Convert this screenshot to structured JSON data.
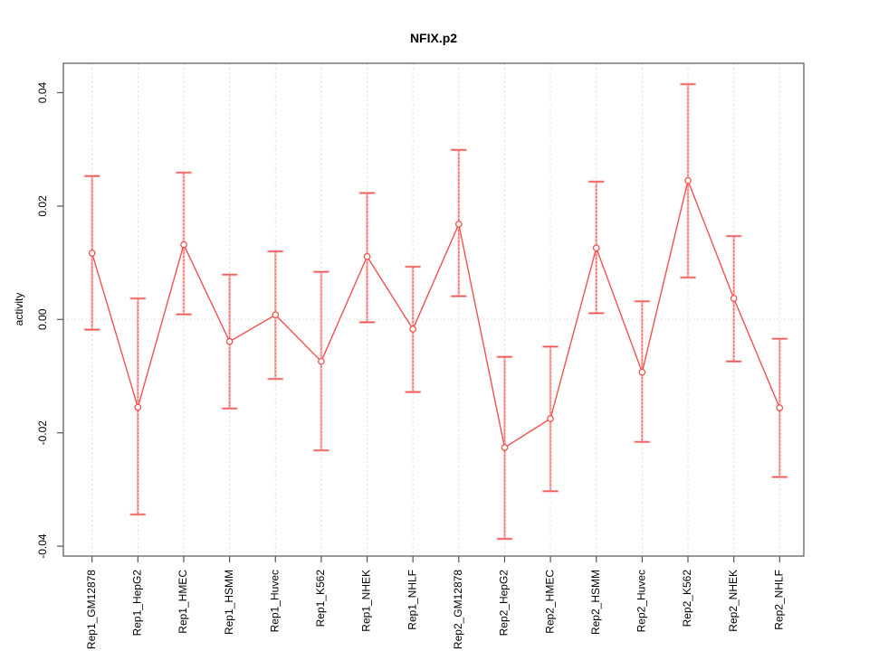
{
  "figure": {
    "title": "NFIX.p2",
    "y_axis_label": "activity"
  },
  "chart_data": {
    "type": "line",
    "title": "NFIX.p2",
    "xlabel": "",
    "ylabel": "activity",
    "ylim": [
      -0.042,
      0.0447
    ],
    "yticks": [
      -0.04,
      -0.02,
      0,
      0.02,
      0.04
    ],
    "ytick_labels": [
      "-0.04",
      "-0.02",
      "0.00",
      "0.02",
      "0.04"
    ],
    "grid": "vertical dashed gridline at every category; dotted horizontal reference line at y=0; no legend",
    "legend": "none",
    "point_style": "open circle with vertical error bar (caps at ends), points connected by straight line segments",
    "categories": [
      "Rep1_GM12878",
      "Rep1_HepG2",
      "Rep1_HMEC",
      "Rep1_HSMM",
      "Rep1_Huvec",
      "Rep1_K562",
      "Rep1_NHEK",
      "Rep1_NHLF",
      "Rep2_GM12878",
      "Rep2_HepG2",
      "Rep2_HMEC",
      "Rep2_HSMM",
      "Rep2_Huvec",
      "Rep2_K562",
      "Rep2_NHEK",
      "Rep2_NHLF"
    ],
    "series": [
      {
        "name": "activity",
        "values": [
          0.0117,
          -0.0155,
          0.0132,
          -0.0039,
          0.0008,
          -0.0074,
          0.0111,
          -0.0017,
          0.0168,
          -0.0226,
          -0.0175,
          0.0126,
          -0.0093,
          0.0245,
          0.0037,
          -0.0156
        ]
      },
      {
        "name": "ci_upper",
        "values": [
          0.0253,
          0.0037,
          0.0259,
          0.0079,
          0.012,
          0.0084,
          0.0223,
          0.0093,
          0.0299,
          -0.0066,
          -0.0048,
          0.0243,
          0.0032,
          0.0415,
          0.0147,
          -0.0034
        ]
      },
      {
        "name": "ci_lower",
        "values": [
          -0.0018,
          -0.0344,
          0.0009,
          -0.0157,
          -0.0105,
          -0.0231,
          -0.0005,
          -0.0128,
          0.0041,
          -0.0387,
          -0.0303,
          0.0011,
          -0.0216,
          0.0074,
          -0.0074,
          -0.0278
        ]
      }
    ],
    "colors": {
      "series": "#ef5350",
      "error_bar_halo": "#f8aaaa",
      "grid": "#dcdcdc",
      "zero_line": "#d8d8d8",
      "frame": "#555555",
      "text": "#000000",
      "background": "#ffffff"
    }
  }
}
